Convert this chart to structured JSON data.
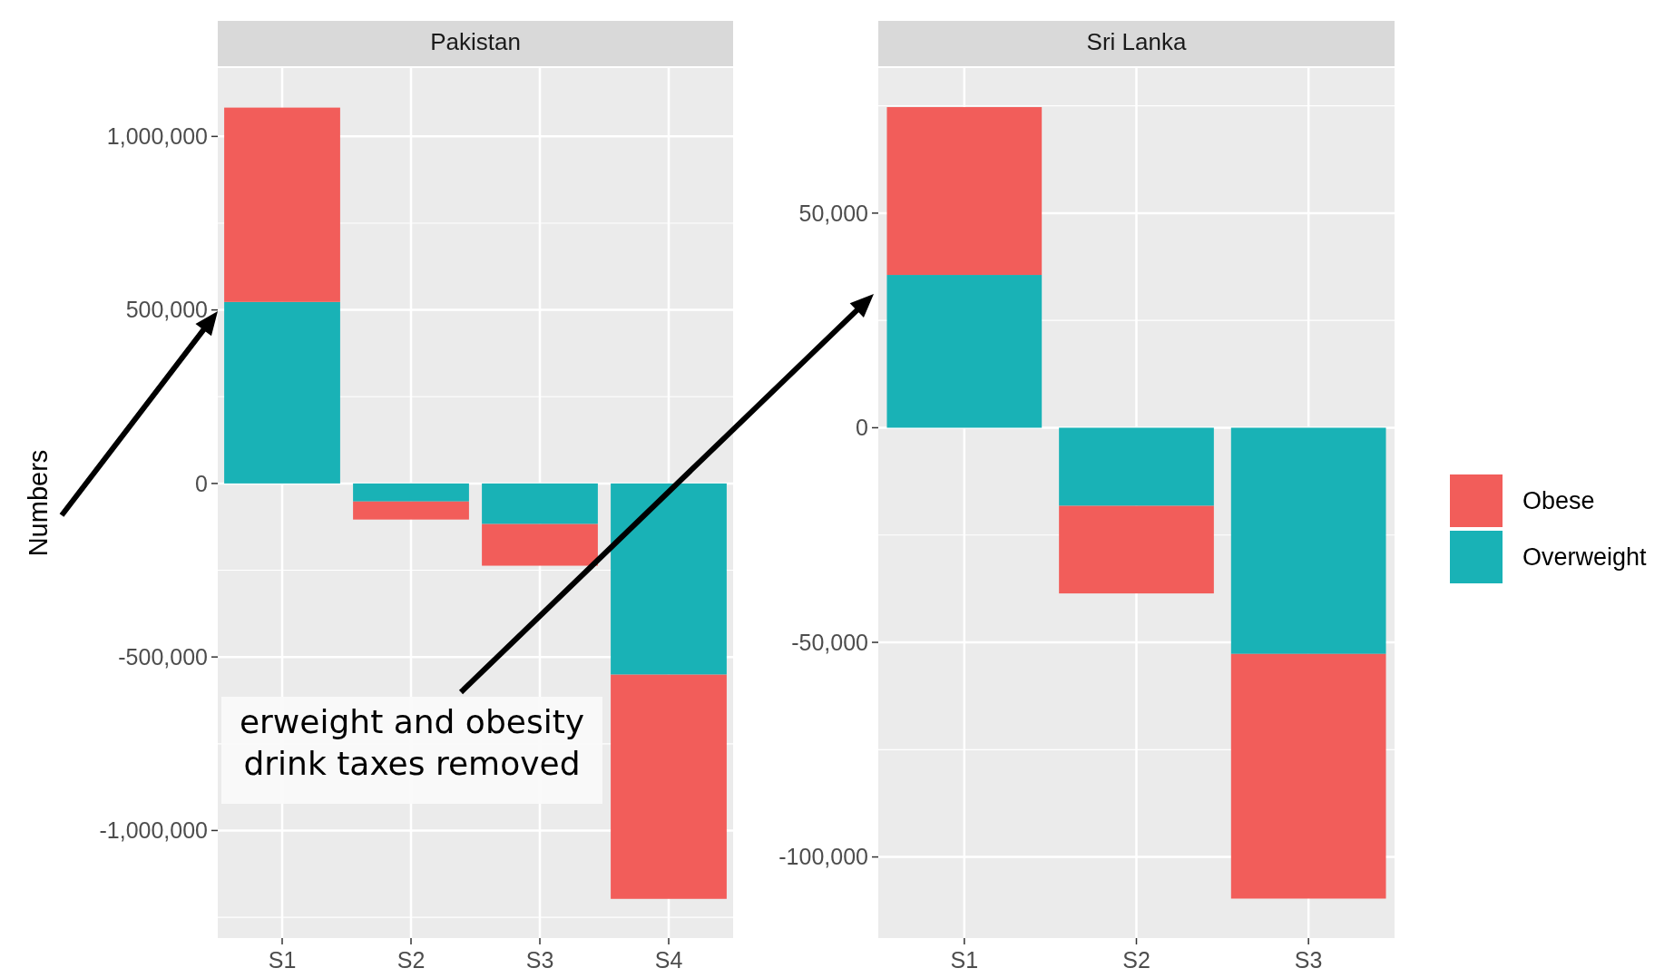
{
  "chart_data": [
    {
      "type": "bar",
      "title": "Pakistan",
      "ylabel": "Numbers",
      "stacked": true,
      "grid": true,
      "legend": "right",
      "categories": [
        "S1",
        "S2",
        "S3",
        "S4"
      ],
      "series": [
        {
          "name": "Overweight",
          "color": "#19b2b6",
          "values": [
            523000,
            -52000,
            -117000,
            -551000
          ]
        },
        {
          "name": "Obese",
          "color": "#f25d5a",
          "values": [
            560000,
            -52000,
            -120000,
            -646000
          ]
        }
      ],
      "ylim": [
        -1310000,
        1197000
      ],
      "yticks": [
        {
          "value": -1000000,
          "label": "-1,000,000"
        },
        {
          "value": -500000,
          "label": "-500,000"
        },
        0,
        {
          "value": 500000,
          "label": "500,000"
        },
        {
          "value": 1000000,
          "label": "1,000,000"
        }
      ],
      "annotations": [
        "erweight and obesity",
        "drink taxes removed"
      ]
    },
    {
      "type": "bar",
      "title": "Sri Lanka",
      "stacked": true,
      "grid": true,
      "categories": [
        "S1",
        "S2",
        "S3"
      ],
      "series": [
        {
          "color": "#19b2b6",
          "values": [
            35600,
            -18200,
            -52700
          ]
        },
        {
          "color": "#f25d5a",
          "values": [
            39100,
            -20400,
            -57000
          ]
        }
      ],
      "ylim": [
        -118900,
        83800
      ],
      "yticks": [
        {
          "value": -100000,
          "label": "-100,000"
        },
        {
          "value": -50000,
          "label": "-50,000"
        },
        0,
        {
          "value": 50000,
          "label": "50,000"
        }
      ]
    }
  ]
}
